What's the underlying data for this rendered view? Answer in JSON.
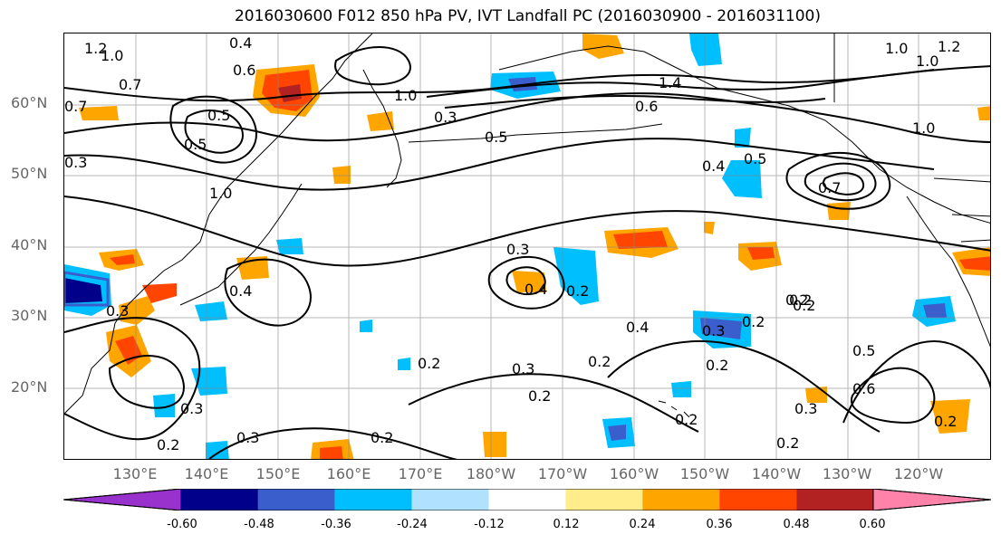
{
  "title": "2016030600 F012 850 hPa PV, IVT Landfall PC (2016030900 - 2016031100)",
  "lat_labels": [
    "60°N",
    "50°N",
    "40°N",
    "30°N",
    "20°N"
  ],
  "lon_labels": [
    "130°E",
    "140°E",
    "150°E",
    "160°E",
    "170°E",
    "180°W",
    "170°W",
    "160°W",
    "150°W",
    "140°W",
    "130°W",
    "120°W"
  ],
  "colorbar": {
    "colors": [
      "#9932cc",
      "#00008b",
      "#3a5fcd",
      "#00bfff",
      "#b0e2ff",
      "#ffffff",
      "#ffec8b",
      "#ffa500",
      "#ff4500",
      "#b22222",
      "#ff82ab"
    ],
    "tick_labels": [
      "-0.60",
      "-0.48",
      "-0.36",
      "-0.24",
      "-0.12",
      "0.12",
      "0.24",
      "0.36",
      "0.48",
      "0.60"
    ]
  },
  "contour_labels": [
    {
      "text": "1.2"
    },
    {
      "text": "1.0"
    },
    {
      "text": "0.7"
    },
    {
      "text": "0.4"
    },
    {
      "text": "0.6"
    },
    {
      "text": "0.7"
    },
    {
      "text": "0.5"
    },
    {
      "text": "0.3"
    },
    {
      "text": "1.0"
    },
    {
      "text": "0.5"
    },
    {
      "text": "1.0"
    },
    {
      "text": "0.5"
    },
    {
      "text": "0.3"
    },
    {
      "text": "1.4"
    },
    {
      "text": "0.6"
    },
    {
      "text": "1.0"
    },
    {
      "text": "1.2"
    },
    {
      "text": "1.0"
    },
    {
      "text": "1.0"
    },
    {
      "text": "0.4"
    },
    {
      "text": "0.5"
    },
    {
      "text": "0.7"
    },
    {
      "text": "0.3"
    },
    {
      "text": "0.4"
    },
    {
      "text": "0.2"
    },
    {
      "text": "0.4"
    },
    {
      "text": "0.3"
    },
    {
      "text": "0.2"
    },
    {
      "text": "0.2"
    },
    {
      "text": "0.2"
    },
    {
      "text": "0.3"
    },
    {
      "text": "0.2"
    },
    {
      "text": "0.4"
    },
    {
      "text": "0.2"
    },
    {
      "text": "0.2"
    },
    {
      "text": "0.2"
    },
    {
      "text": "0.3"
    },
    {
      "text": "0.2"
    },
    {
      "text": "0.5"
    },
    {
      "text": "0.6"
    },
    {
      "text": "0.3"
    },
    {
      "text": "0.3"
    },
    {
      "text": "0.2"
    },
    {
      "text": "0.2"
    },
    {
      "text": "0.2"
    },
    {
      "text": "0.3"
    },
    {
      "text": "0.2"
    },
    {
      "text": "0.2"
    }
  ]
}
